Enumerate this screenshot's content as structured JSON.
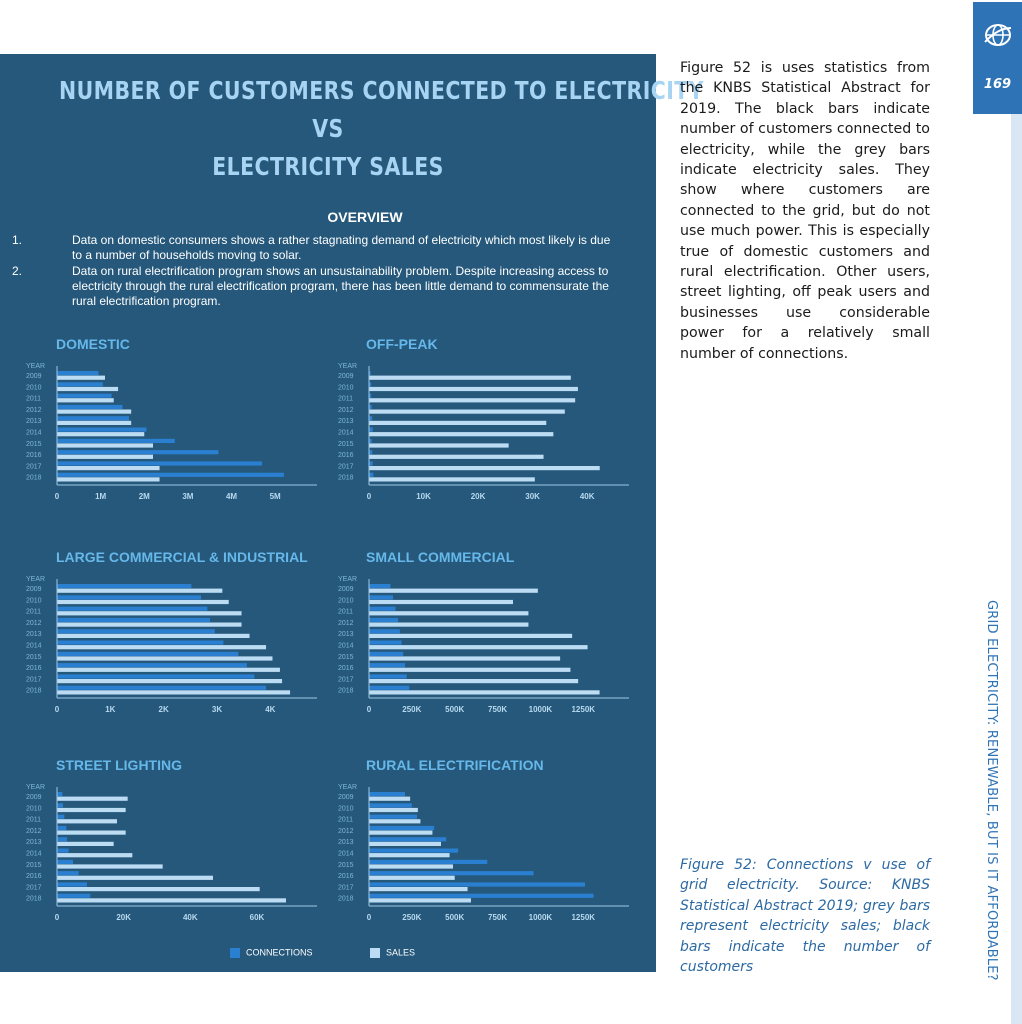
{
  "infographic": {
    "title_lines": [
      "NUMBER OF CUSTOMERS CONNECTED TO ELECTRICITY",
      "VS",
      "ELECTRICITY SALES"
    ],
    "overview": {
      "heading": "OVERVIEW",
      "items": [
        {
          "num": "1.",
          "text": "Data on domestic consumers shows a rather stagnating demand of electricity which most likely is due to a number of households moving to solar."
        },
        {
          "num": "2.",
          "text": "Data on rural electrification program shows an unsustainability problem. Despite increasing access to electricity through the rural electrification program, there has been little demand to commensurate the rural electrification program."
        }
      ]
    },
    "legend": {
      "connections": "CONNECTIONS",
      "sales": "SALES"
    }
  },
  "colors": {
    "panel": "#25587b",
    "title": "#a7d4f2",
    "chart_title": "#66b8ea",
    "connections": "#2a7fd0",
    "sales": "#bcdcf4",
    "axis": "#9fc8e6",
    "tab": "#2e73b6"
  },
  "chart_data": [
    {
      "type": "bar",
      "orientation": "horizontal",
      "title": "DOMESTIC",
      "year_header": "YEAR",
      "categories": [
        "2009",
        "2010",
        "2011",
        "2012",
        "2013",
        "2014",
        "2015",
        "2016",
        "2017",
        "2018"
      ],
      "xlim": [
        0,
        5500000
      ],
      "ticks": [
        {
          "v": 0,
          "label": "0"
        },
        {
          "v": 1000000,
          "label": "1M"
        },
        {
          "v": 2000000,
          "label": "2M"
        },
        {
          "v": 3000000,
          "label": "3M"
        },
        {
          "v": 4000000,
          "label": "4M"
        },
        {
          "v": 5000000,
          "label": "5M"
        }
      ],
      "series": [
        {
          "name": "CONNECTIONS",
          "values": [
            950000,
            1050000,
            1250000,
            1500000,
            1650000,
            2050000,
            2700000,
            3700000,
            4700000,
            5200000
          ]
        },
        {
          "name": "SALES",
          "values": [
            1100000,
            1400000,
            1300000,
            1700000,
            1700000,
            2000000,
            2200000,
            2200000,
            2350000,
            2350000
          ]
        }
      ]
    },
    {
      "type": "bar",
      "orientation": "horizontal",
      "title": "OFF-PEAK",
      "year_header": "YEAR",
      "categories": [
        "2009",
        "2010",
        "2011",
        "2012",
        "2013",
        "2014",
        "2015",
        "2016",
        "2017",
        "2018"
      ],
      "xlim": [
        0,
        44000
      ],
      "ticks": [
        {
          "v": 0,
          "label": "0"
        },
        {
          "v": 10000,
          "label": "10K"
        },
        {
          "v": 20000,
          "label": "20K"
        },
        {
          "v": 30000,
          "label": "30K"
        },
        {
          "v": 40000,
          "label": "40K"
        }
      ],
      "series": [
        {
          "name": "CONNECTIONS",
          "values": [
            300,
            400,
            400,
            500,
            600,
            700,
            500,
            600,
            700,
            800
          ]
        },
        {
          "name": "SALES",
          "values": [
            37000,
            38300,
            37800,
            35900,
            32500,
            33800,
            25600,
            32000,
            42300,
            30400
          ]
        }
      ]
    },
    {
      "type": "bar",
      "orientation": "horizontal",
      "title": "LARGE COMMERCIAL & INDUSTRIAL",
      "year_header": "YEAR",
      "categories": [
        "2009",
        "2010",
        "2011",
        "2012",
        "2013",
        "2014",
        "2015",
        "2016",
        "2017",
        "2018"
      ],
      "xlim": [
        0,
        4500
      ],
      "ticks": [
        {
          "v": 0,
          "label": "0"
        },
        {
          "v": 1000,
          "label": "1K"
        },
        {
          "v": 2000,
          "label": "2K"
        },
        {
          "v": 3000,
          "label": "3K"
        },
        {
          "v": 4000,
          "label": "4K"
        }
      ],
      "series": [
        {
          "name": "CONNECTIONS",
          "values": [
            2520,
            2700,
            2820,
            2870,
            2960,
            3120,
            3400,
            3560,
            3700,
            3920
          ]
        },
        {
          "name": "SALES",
          "values": [
            3100,
            3220,
            3460,
            3460,
            3610,
            3920,
            4040,
            4180,
            4220,
            4370
          ]
        }
      ]
    },
    {
      "type": "bar",
      "orientation": "horizontal",
      "title": "SMALL COMMERCIAL",
      "year_header": "YEAR",
      "categories": [
        "2009",
        "2010",
        "2011",
        "2012",
        "2013",
        "2014",
        "2015",
        "2016",
        "2017",
        "2018"
      ],
      "xlim": [
        0,
        1400000
      ],
      "ticks": [
        {
          "v": 0,
          "label": "0"
        },
        {
          "v": 250000,
          "label": "250K"
        },
        {
          "v": 500000,
          "label": "500K"
        },
        {
          "v": 750000,
          "label": "750K"
        },
        {
          "v": 1000000,
          "label": "1000K"
        },
        {
          "v": 1250000,
          "label": "1250K"
        }
      ],
      "series": [
        {
          "name": "CONNECTIONS",
          "values": [
            125000,
            140000,
            155000,
            170000,
            180000,
            190000,
            200000,
            210000,
            220000,
            235000
          ]
        },
        {
          "name": "SALES",
          "values": [
            985000,
            840000,
            930000,
            930000,
            1185000,
            1275000,
            1115000,
            1175000,
            1220000,
            1345000
          ]
        }
      ]
    },
    {
      "type": "bar",
      "orientation": "horizontal",
      "title": "STREET LIGHTING",
      "year_header": "YEAR",
      "categories": [
        "2009",
        "2010",
        "2011",
        "2012",
        "2013",
        "2014",
        "2015",
        "2016",
        "2017",
        "2018"
      ],
      "xlim": [
        0,
        72000
      ],
      "ticks": [
        {
          "v": 0,
          "label": "0"
        },
        {
          "v": 20000,
          "label": "20K"
        },
        {
          "v": 40000,
          "label": "40K"
        },
        {
          "v": 60000,
          "label": "60K"
        }
      ],
      "series": [
        {
          "name": "CONNECTIONS",
          "values": [
            1600,
            1800,
            2200,
            2800,
            3000,
            3500,
            4800,
            6500,
            9000,
            10000
          ]
        },
        {
          "name": "SALES",
          "values": [
            21200,
            20600,
            18000,
            20600,
            17000,
            22600,
            31700,
            46800,
            60800,
            68700
          ]
        }
      ]
    },
    {
      "type": "bar",
      "orientation": "horizontal",
      "title": "RURAL ELECTRIFICATION",
      "year_header": "YEAR",
      "categories": [
        "2009",
        "2010",
        "2011",
        "2012",
        "2013",
        "2014",
        "2015",
        "2016",
        "2017",
        "2018"
      ],
      "xlim": [
        0,
        1400000
      ],
      "ticks": [
        {
          "v": 0,
          "label": "0"
        },
        {
          "v": 250000,
          "label": "250K"
        },
        {
          "v": 500000,
          "label": "500K"
        },
        {
          "v": 750000,
          "label": "750K"
        },
        {
          "v": 1000000,
          "label": "1000K"
        },
        {
          "v": 1250000,
          "label": "1250K"
        }
      ],
      "series": [
        {
          "name": "CONNECTIONS",
          "values": [
            210000,
            250000,
            280000,
            380000,
            450000,
            520000,
            690000,
            960000,
            1260000,
            1310000
          ]
        },
        {
          "name": "SALES",
          "values": [
            240000,
            285000,
            300000,
            370000,
            420000,
            470000,
            490000,
            500000,
            575000,
            595000
          ]
        }
      ]
    }
  ],
  "body_text": "Figure 52 is uses statistics from the KNBS Statistical Abstract for 2019. The black bars indicate number of customers connected to electricity, while the grey bars indicate electricity sales. They show where customers are connected to the grid, but do not use much power. This is especially true of domestic customers and rural electrification. Other users, street lighting, off peak users and businesses use considerable power for a relatively small number of connections.",
  "caption": "Figure 52: Connections v use of grid electricity. Source: KNBS Statistical Abstract 2019; grey bars represent electricity sales; black bars indicate the number of customers",
  "page_number": "169",
  "section_title": "GRID ELECTRICITY: RENEWABLE, BUT IS IT AFFORDABLE?",
  "icons": {
    "tab_icon": "globe-icon"
  }
}
